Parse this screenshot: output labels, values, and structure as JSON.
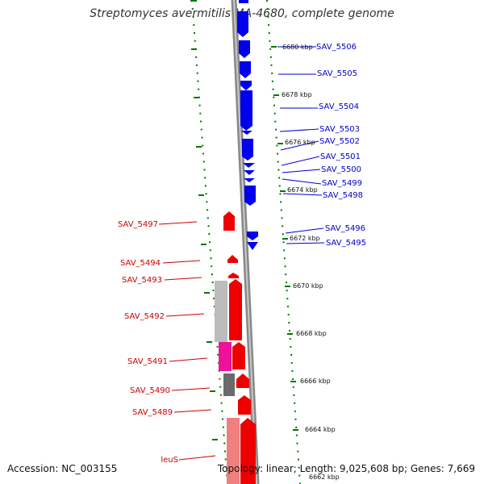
{
  "header": {
    "title": "Streptomyces avermitilis MA-4680, complete genome"
  },
  "footer": {
    "accession": "Accession: NC_003155",
    "stats": "Topology: linear; Length: 9,025,608 bp; Genes: 7,669"
  },
  "colors": {
    "forward_gene": "#0000ee",
    "reverse_gene": "#ee0000",
    "forward_label": "#0000cc",
    "reverse_label": "#cc0000",
    "tick": "#007700",
    "backbone": "#888888"
  },
  "scale_labels": [
    "6680 kbp",
    "6678 kbp",
    "6676 kbp",
    "6674 kbp",
    "6672 kbp",
    "6670 kbp",
    "6668 kbp",
    "6666 kbp",
    "6664 kbp",
    "6662 kbp"
  ],
  "forward_gene_labels": [
    "SAV_5506",
    "SAV_5505",
    "SAV_5504",
    "SAV_5503",
    "SAV_5502",
    "SAV_5501",
    "SAV_5500",
    "SAV_5499",
    "SAV_5498",
    "SAV_5496",
    "SAV_5495"
  ],
  "reverse_gene_labels": [
    "SAV_5497",
    "SAV_5494",
    "SAV_5493",
    "SAV_5492",
    "SAV_5491",
    "SAV_5490",
    "SAV_5489",
    "leuS"
  ]
}
